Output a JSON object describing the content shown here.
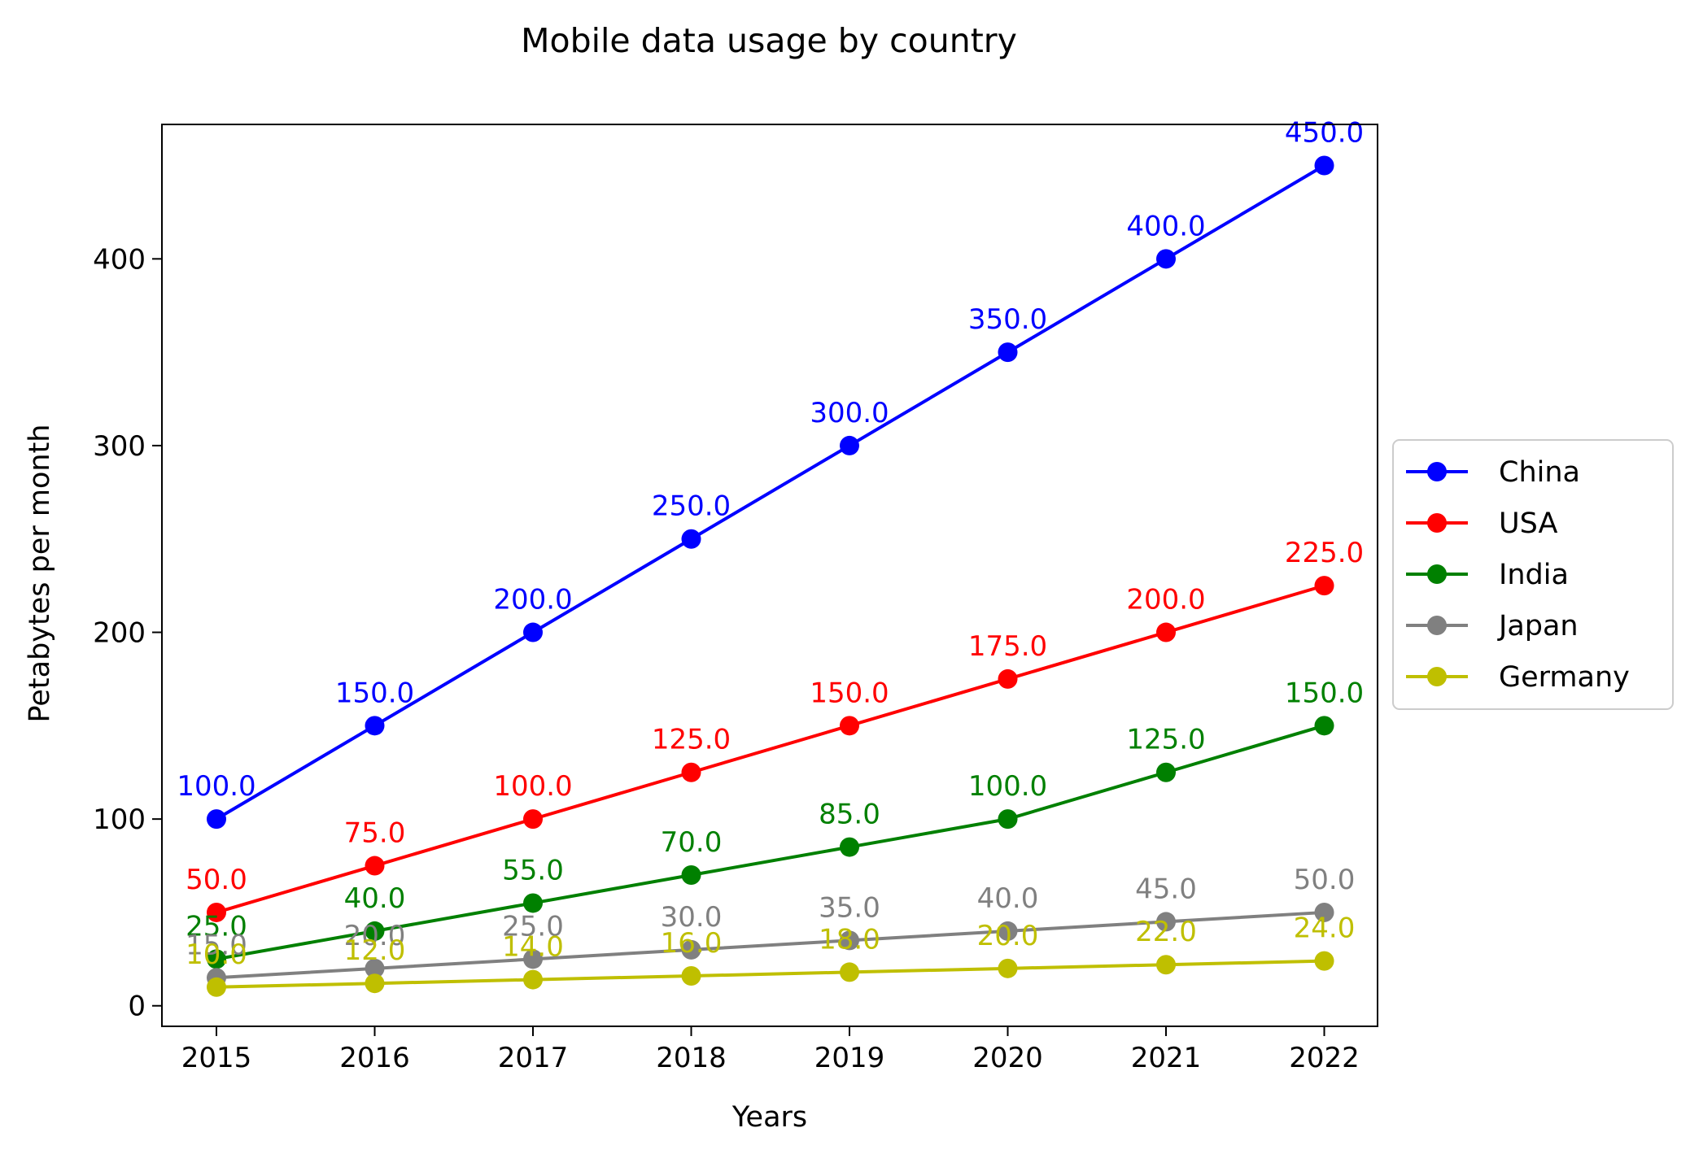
{
  "chart_data": {
    "type": "line",
    "title": "Mobile data usage by country",
    "xlabel": "Years",
    "ylabel": "Petabytes per month",
    "x": [
      2015,
      2016,
      2017,
      2018,
      2019,
      2020,
      2021,
      2022
    ],
    "xticks": [
      "2015",
      "2016",
      "2017",
      "2018",
      "2019",
      "2020",
      "2021",
      "2022"
    ],
    "yticks": [
      "0",
      "100",
      "200",
      "300",
      "400"
    ],
    "ylim": [
      -11,
      472
    ],
    "grid": false,
    "legend_position": "center-right-outside",
    "series": [
      {
        "name": "China",
        "color": "#0000ff",
        "values": [
          100,
          150,
          200,
          250,
          300,
          350,
          400,
          450
        ],
        "labels": [
          "100.0",
          "150.0",
          "200.0",
          "250.0",
          "300.0",
          "350.0",
          "400.0",
          "450.0"
        ]
      },
      {
        "name": "USA",
        "color": "#ff0000",
        "values": [
          50,
          75,
          100,
          125,
          150,
          175,
          200,
          225
        ],
        "labels": [
          "50.0",
          "75.0",
          "100.0",
          "125.0",
          "150.0",
          "175.0",
          "200.0",
          "225.0"
        ]
      },
      {
        "name": "India",
        "color": "#008000",
        "values": [
          25,
          40,
          55,
          70,
          85,
          100,
          125,
          150
        ],
        "labels": [
          "25.0",
          "40.0",
          "55.0",
          "70.0",
          "85.0",
          "100.0",
          "125.0",
          "150.0"
        ]
      },
      {
        "name": "Japan",
        "color": "#808080",
        "values": [
          15,
          20,
          25,
          30,
          35,
          40,
          45,
          50
        ],
        "labels": [
          "15.0",
          "20.0",
          "25.0",
          "30.0",
          "35.0",
          "40.0",
          "45.0",
          "50.0"
        ]
      },
      {
        "name": "Germany",
        "color": "#bfbf00",
        "values": [
          10,
          12,
          14,
          16,
          18,
          20,
          22,
          24
        ],
        "labels": [
          "10.0",
          "12.0",
          "14.0",
          "16.0",
          "18.0",
          "20.0",
          "22.0",
          "24.0"
        ]
      }
    ]
  }
}
